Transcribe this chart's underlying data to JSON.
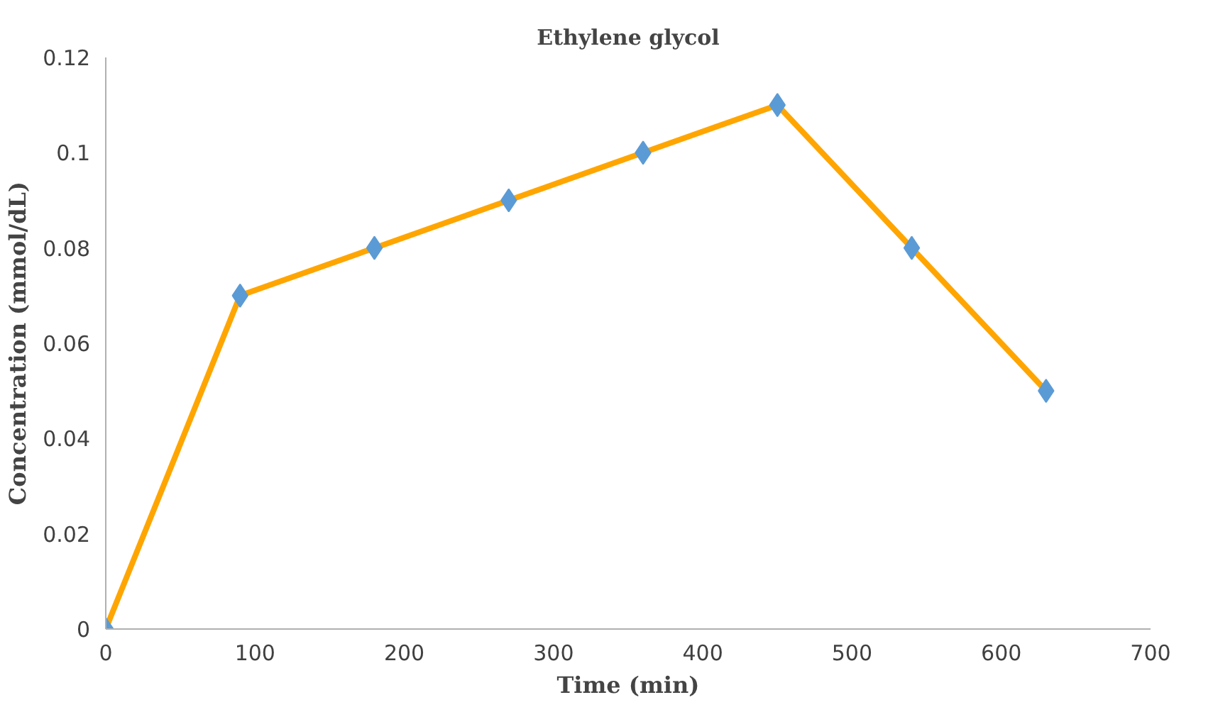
{
  "chart_data": {
    "type": "line",
    "title": "Ethylene glycol",
    "xlabel": "Time (min)",
    "ylabel": "Concentration (mmol/dL)",
    "x": [
      0,
      90,
      180,
      270,
      360,
      450,
      540,
      630
    ],
    "series": [
      {
        "color": "#ffa500",
        "colors": [
          "#5b9bd5",
          "#5b9bd5",
          "#5b9bd5",
          "#5b9bd5",
          "#5b9bd5",
          "#5b9bd5",
          "#5b9bd5",
          "#5b9bd5"
        ],
        "values": [
          0,
          0.07,
          0.08,
          0.09,
          0.1,
          0.11,
          0.08,
          0.05
        ]
      }
    ],
    "marker": "diamond",
    "grid": false,
    "xlim": [
      0,
      700
    ],
    "xticks": [
      0,
      100,
      200,
      300,
      400,
      500,
      600,
      700
    ],
    "ylim": [
      0,
      0.12
    ],
    "yticks": [
      0,
      0.02,
      0.04,
      0.06,
      0.08,
      0.1,
      0.12
    ]
  }
}
